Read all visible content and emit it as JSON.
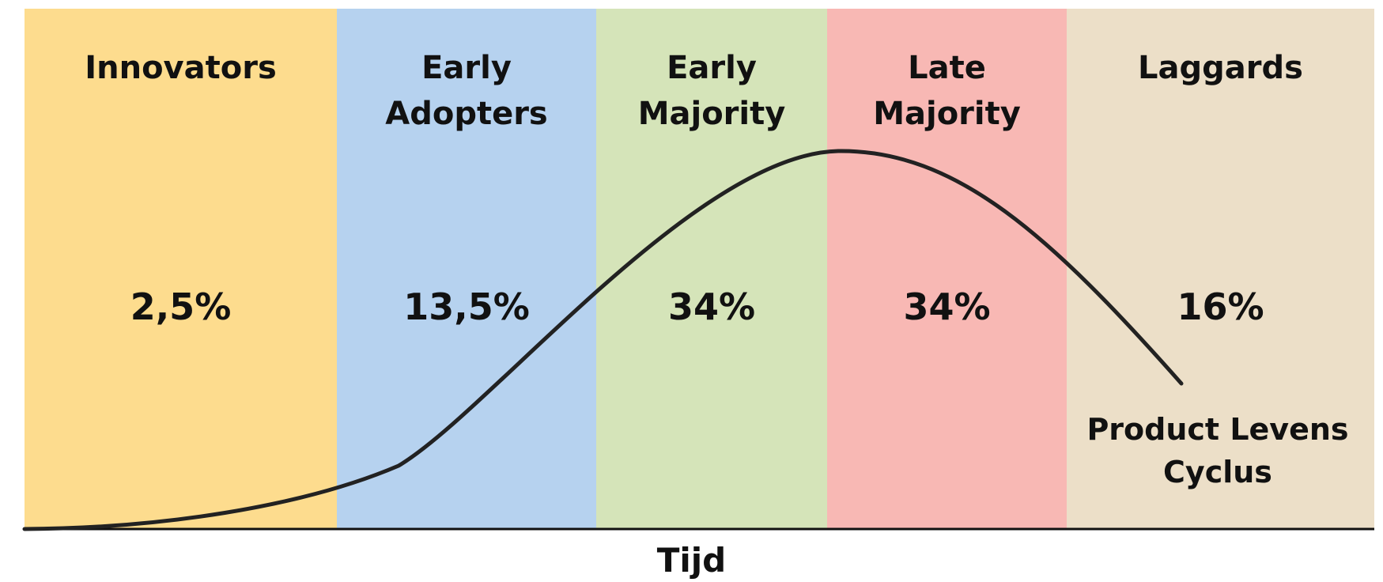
{
  "segments": [
    {
      "label": "Innovators",
      "share": "2,5%",
      "color": "#fddc8e"
    },
    {
      "label": "Early Adopters",
      "share": "13,5%",
      "color": "#b6d2ef"
    },
    {
      "label": "Early Majority",
      "share": "34%",
      "color": "#d5e4b9"
    },
    {
      "label": "Late Majority",
      "share": "34%",
      "color": "#f8b8b4"
    },
    {
      "label": "Laggards",
      "share": "16%",
      "color": "#ecdfc8"
    }
  ],
  "axis_label": "Tijd",
  "curve_label": "Product Levens Cyclus"
}
